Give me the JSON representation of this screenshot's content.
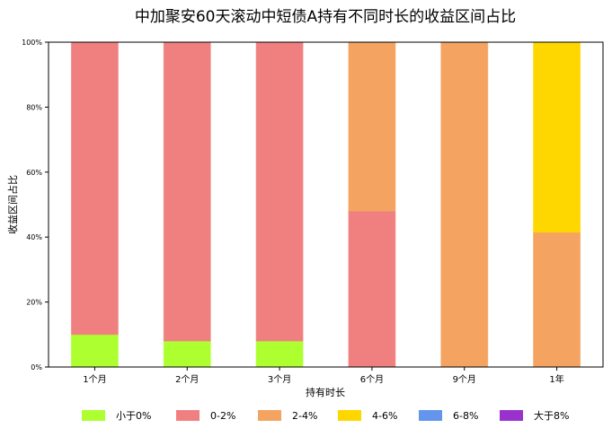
{
  "chart_data": {
    "type": "bar",
    "stacked": true,
    "title": "中加聚安60天滚动中短债A持有不同时长的收益区间占比",
    "xlabel": "持有时长",
    "ylabel": "收益区间占比",
    "ylim": [
      0,
      100
    ],
    "yticks": [
      "0%",
      "20%",
      "40%",
      "60%",
      "80%",
      "100%"
    ],
    "categories": [
      "1个月",
      "2个月",
      "3个月",
      "6个月",
      "9个月",
      "1年"
    ],
    "series": [
      {
        "name": "小于0%",
        "color": "#ADFF2F",
        "values": [
          10,
          8,
          8,
          0,
          0,
          0
        ]
      },
      {
        "name": "0-2%",
        "color": "#F08080",
        "values": [
          90,
          92,
          92,
          48,
          0,
          0
        ]
      },
      {
        "name": "2-4%",
        "color": "#F4A460",
        "values": [
          0,
          0,
          0,
          52,
          100,
          41.5
        ]
      },
      {
        "name": "4-6%",
        "color": "#FFD700",
        "values": [
          0,
          0,
          0,
          0,
          0,
          58.5
        ]
      },
      {
        "name": "6-8%",
        "color": "#6495ED",
        "values": [
          0,
          0,
          0,
          0,
          0,
          0
        ]
      },
      {
        "name": "大于8%",
        "color": "#9932CC",
        "values": [
          0,
          0,
          0,
          0,
          0,
          0
        ]
      }
    ],
    "grid": false,
    "legend": "bottom"
  }
}
